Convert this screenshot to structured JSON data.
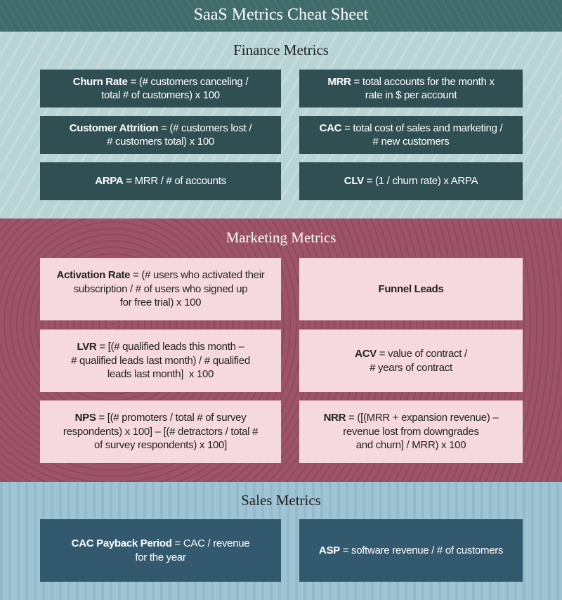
{
  "title": "SaaS Metrics Cheat Sheet",
  "colors": {
    "header": "#3f6b6a",
    "finance_bg": "#b9d4d5",
    "finance_card": "#2f4f53",
    "marketing_bg": "#9d5368",
    "marketing_card": "#f6d9de",
    "sales_bg": "#9fc4d3",
    "sales_card": "#33596e"
  },
  "sections": [
    {
      "id": "finance",
      "title": "Finance Metrics",
      "cards": [
        {
          "term": "Churn Rate",
          "lines": [
            " = (# customers canceling /",
            "total # of customers) x 100"
          ]
        },
        {
          "term": "MRR",
          "lines": [
            " = total accounts for the month x",
            "rate in $ per account"
          ]
        },
        {
          "term": "Customer Attrition",
          "lines": [
            " = (# customers lost /",
            "# customers total) x 100"
          ]
        },
        {
          "term": "CAC",
          "lines": [
            " = total cost of sales and marketing /",
            "# new customers"
          ]
        },
        {
          "term": "ARPA",
          "lines": [
            " = MRR / # of accounts"
          ]
        },
        {
          "term": "CLV",
          "lines": [
            " = (1 / churn rate) x ARPA"
          ]
        }
      ]
    },
    {
      "id": "marketing",
      "title": "Marketing Metrics",
      "cards": [
        {
          "term": "Activation Rate",
          "lines": [
            " = (# users who activated their",
            "subscription / # of users who signed up",
            "for free trial) x 100"
          ]
        },
        {
          "term": "Funnel Leads",
          "lines": [
            ""
          ]
        },
        {
          "term": "LVR",
          "lines": [
            " = [(# qualified leads this month –",
            "# qualified leads last month) / # qualified",
            "leads last month]  x 100"
          ]
        },
        {
          "term": "ACV",
          "lines": [
            " = value of contract /",
            "# years of contract"
          ]
        },
        {
          "term": "NPS",
          "lines": [
            " = [(# promoters / total # of survey",
            "respondents) x 100] – [(# detractors / total #",
            "of survey respondents) x 100]"
          ]
        },
        {
          "term": "NRR",
          "lines": [
            " = ([(MRR + expansion revenue) –",
            "revenue lost from downgrades",
            "and churn] / MRR) x 100"
          ]
        }
      ]
    },
    {
      "id": "sales",
      "title": "Sales Metrics",
      "cards": [
        {
          "term": "CAC Payback Period",
          "lines": [
            " = CAC / revenue",
            "for the year"
          ]
        },
        {
          "term": "ASP",
          "lines": [
            " = software revenue / # of customers"
          ]
        }
      ]
    }
  ]
}
